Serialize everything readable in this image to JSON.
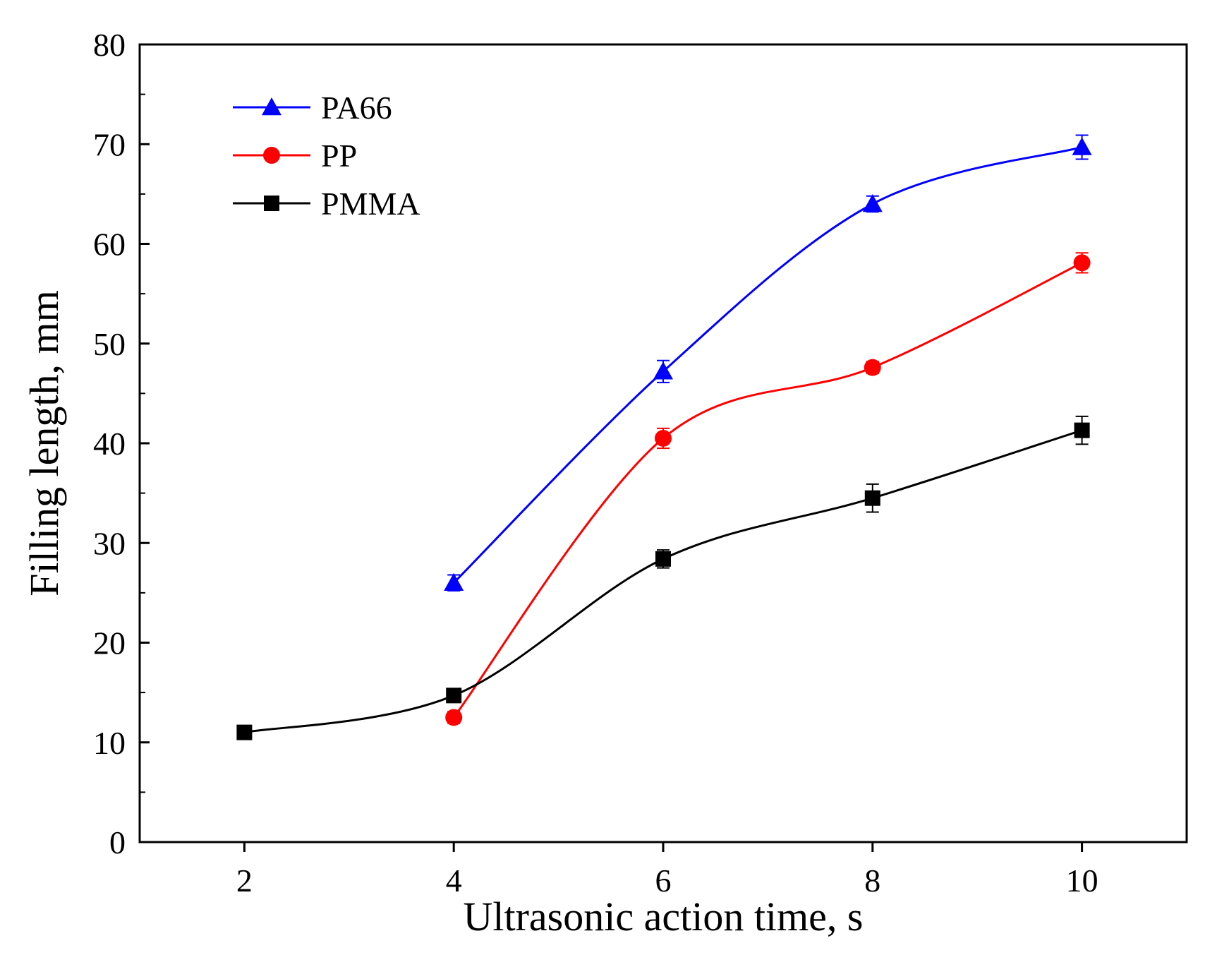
{
  "chart_data": {
    "type": "line",
    "xlabel": "Ultrasonic action time, s",
    "ylabel": "Filling length, mm",
    "xlim": [
      1,
      11
    ],
    "ylim": [
      0,
      80
    ],
    "xticks": [
      2,
      4,
      6,
      8,
      10
    ],
    "yticks": [
      0,
      10,
      20,
      30,
      40,
      50,
      60,
      70,
      80
    ],
    "y_minor_step": 5,
    "grid": false,
    "legend_position": "top-left",
    "series": [
      {
        "name": "PA66",
        "color": "#0000ff",
        "marker": "triangle",
        "x": [
          4,
          6,
          8,
          10
        ],
        "y": [
          26.0,
          47.2,
          64.0,
          69.7
        ],
        "error": [
          0.8,
          1.1,
          0.8,
          1.2
        ]
      },
      {
        "name": "PP",
        "color": "#ff0000",
        "marker": "circle",
        "x": [
          4,
          6,
          8,
          10
        ],
        "y": [
          12.5,
          40.5,
          47.6,
          58.1
        ],
        "error": [
          0.6,
          1.0,
          0.6,
          1.0
        ]
      },
      {
        "name": "PMMA",
        "color": "#000000",
        "marker": "square",
        "x": [
          2,
          4,
          6,
          8,
          10
        ],
        "y": [
          11.0,
          14.7,
          28.4,
          34.5,
          41.3
        ],
        "error": [
          0.3,
          0.5,
          0.9,
          1.4,
          1.4
        ]
      }
    ]
  }
}
